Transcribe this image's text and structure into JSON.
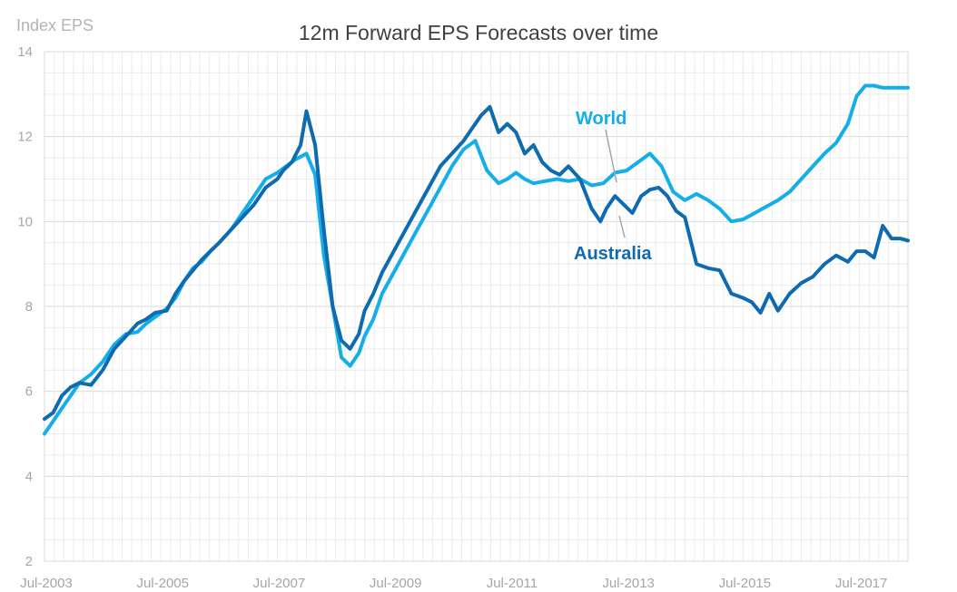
{
  "chart_data": {
    "type": "line",
    "title": "12m Forward EPS Forecasts over time",
    "ylabel": "Index EPS",
    "xlabel": "",
    "ylim": [
      2,
      14
    ],
    "yticks": [
      "2",
      "4",
      "6",
      "8",
      "10",
      "12",
      "14"
    ],
    "x_range": [
      2003.5,
      2018.333
    ],
    "xticks": [
      {
        "label": "Jul-2003",
        "x": 2003.5
      },
      {
        "label": "Jul-2005",
        "x": 2005.5
      },
      {
        "label": "Jul-2007",
        "x": 2007.5
      },
      {
        "label": "Jul-2009",
        "x": 2009.5
      },
      {
        "label": "Jul-2011",
        "x": 2011.5
      },
      {
        "label": "Jul-2013",
        "x": 2013.5
      },
      {
        "label": "Jul-2015",
        "x": 2015.5
      },
      {
        "label": "Jul-2017",
        "x": 2017.5
      }
    ],
    "grid": true,
    "series": [
      {
        "name": "World",
        "color": "#14aee8",
        "x": [
          2003.5,
          2003.65,
          2003.8,
          2003.95,
          2004.1,
          2004.3,
          2004.5,
          2004.7,
          2004.9,
          2005.1,
          2005.25,
          2005.4,
          2005.6,
          2005.75,
          2005.9,
          2006.05,
          2006.2,
          2006.35,
          2006.5,
          2006.7,
          2006.9,
          2007.1,
          2007.3,
          2007.5,
          2007.65,
          2007.8,
          2008.0,
          2008.15,
          2008.3,
          2008.45,
          2008.6,
          2008.75,
          2008.9,
          2009.0,
          2009.15,
          2009.3,
          2009.5,
          2009.7,
          2009.9,
          2010.1,
          2010.3,
          2010.5,
          2010.7,
          2010.9,
          2011.1,
          2011.3,
          2011.45,
          2011.6,
          2011.75,
          2011.9,
          2012.1,
          2012.3,
          2012.5,
          2012.7,
          2012.9,
          2013.1,
          2013.3,
          2013.5,
          2013.7,
          2013.9,
          2014.1,
          2014.3,
          2014.5,
          2014.7,
          2014.9,
          2015.1,
          2015.3,
          2015.5,
          2015.7,
          2015.9,
          2016.1,
          2016.3,
          2016.5,
          2016.7,
          2016.9,
          2017.1,
          2017.3,
          2017.45,
          2017.6,
          2017.75,
          2017.9,
          2018.05,
          2018.2,
          2018.333
        ],
        "values": [
          5.0,
          5.3,
          5.6,
          5.9,
          6.2,
          6.4,
          6.7,
          7.1,
          7.35,
          7.4,
          7.6,
          7.75,
          7.95,
          8.2,
          8.6,
          8.9,
          9.05,
          9.3,
          9.5,
          9.8,
          10.2,
          10.6,
          11.0,
          11.15,
          11.3,
          11.45,
          11.6,
          11.1,
          9.2,
          8.0,
          6.8,
          6.6,
          6.9,
          7.3,
          7.7,
          8.3,
          8.8,
          9.3,
          9.8,
          10.3,
          10.8,
          11.3,
          11.7,
          11.9,
          11.2,
          10.9,
          11.0,
          11.15,
          11.0,
          10.9,
          10.95,
          11.0,
          10.95,
          11.0,
          10.85,
          10.9,
          11.15,
          11.2,
          11.4,
          11.6,
          11.3,
          10.7,
          10.5,
          10.65,
          10.5,
          10.3,
          10.0,
          10.05,
          10.2,
          10.35,
          10.5,
          10.7,
          11.0,
          11.3,
          11.6,
          11.85,
          12.3,
          12.95,
          13.2,
          13.2,
          13.15,
          13.15,
          13.15,
          13.15
        ]
      },
      {
        "name": "Australia",
        "color": "#0e6bb0",
        "x": [
          2003.5,
          2003.65,
          2003.8,
          2003.95,
          2004.1,
          2004.3,
          2004.5,
          2004.7,
          2004.9,
          2005.1,
          2005.25,
          2005.4,
          2005.6,
          2005.75,
          2005.9,
          2006.05,
          2006.2,
          2006.35,
          2006.5,
          2006.7,
          2006.9,
          2007.1,
          2007.3,
          2007.5,
          2007.6,
          2007.75,
          2007.9,
          2008.0,
          2008.15,
          2008.3,
          2008.45,
          2008.6,
          2008.75,
          2008.9,
          2009.0,
          2009.15,
          2009.3,
          2009.5,
          2009.7,
          2009.9,
          2010.1,
          2010.3,
          2010.5,
          2010.7,
          2010.85,
          2011.0,
          2011.15,
          2011.3,
          2011.45,
          2011.6,
          2011.75,
          2011.9,
          2012.05,
          2012.2,
          2012.35,
          2012.5,
          2012.7,
          2012.9,
          2013.05,
          2013.15,
          2013.3,
          2013.45,
          2013.6,
          2013.75,
          2013.9,
          2014.05,
          2014.2,
          2014.35,
          2014.5,
          2014.7,
          2014.9,
          2015.1,
          2015.3,
          2015.5,
          2015.65,
          2015.8,
          2015.95,
          2016.1,
          2016.3,
          2016.5,
          2016.7,
          2016.9,
          2017.1,
          2017.3,
          2017.45,
          2017.6,
          2017.75,
          2017.9,
          2018.05,
          2018.2,
          2018.333
        ],
        "values": [
          5.35,
          5.5,
          5.9,
          6.1,
          6.2,
          6.15,
          6.5,
          7.0,
          7.3,
          7.6,
          7.7,
          7.85,
          7.9,
          8.3,
          8.6,
          8.85,
          9.1,
          9.3,
          9.5,
          9.8,
          10.1,
          10.4,
          10.8,
          11.0,
          11.2,
          11.4,
          11.8,
          12.6,
          11.8,
          9.8,
          8.0,
          7.2,
          7.0,
          7.35,
          7.9,
          8.3,
          8.8,
          9.3,
          9.8,
          10.3,
          10.8,
          11.3,
          11.6,
          11.9,
          12.2,
          12.5,
          12.7,
          12.1,
          12.3,
          12.1,
          11.6,
          11.8,
          11.4,
          11.2,
          11.1,
          11.3,
          11.0,
          10.3,
          10.0,
          10.3,
          10.6,
          10.4,
          10.2,
          10.6,
          10.75,
          10.8,
          10.6,
          10.25,
          10.1,
          9.0,
          8.9,
          8.85,
          8.3,
          8.2,
          8.1,
          7.85,
          8.3,
          7.9,
          8.3,
          8.55,
          8.7,
          9.0,
          9.2,
          9.05,
          9.3,
          9.3,
          9.15,
          9.9,
          9.6,
          9.6,
          9.55
        ]
      }
    ],
    "annotations": [
      {
        "text": "World",
        "series": "World"
      },
      {
        "text": "Australia",
        "series": "Australia"
      }
    ]
  }
}
